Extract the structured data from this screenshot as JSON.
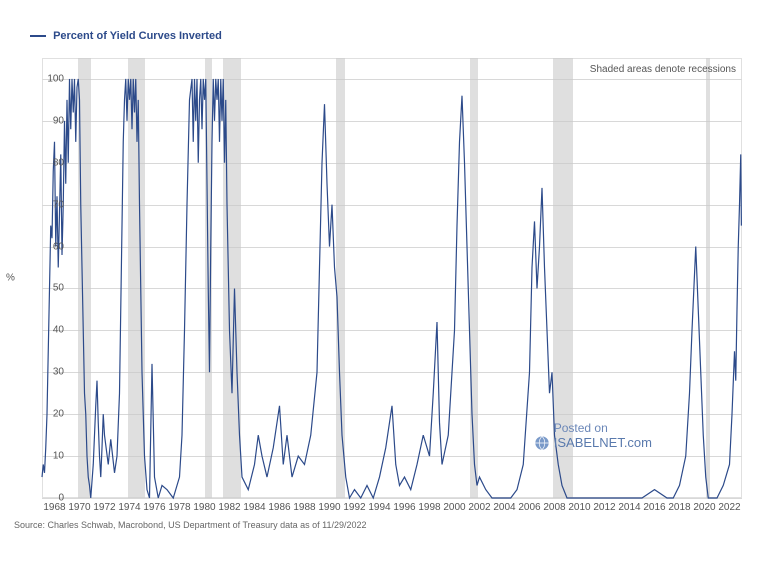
{
  "chart": {
    "type": "line",
    "legend_label": "Percent of Yield Curves Inverted",
    "y_axis_title": "%",
    "source_text": "Source: Charles Schwab, Macrobond, US Department of Treasury data as of 11/29/2022",
    "note_text": "Shaded areas denote recessions",
    "watermark_line1": "Posted on",
    "watermark_line2": "ISABELNET.com",
    "background_color": "#ffffff",
    "grid_color": "#d8d8d8",
    "recession_color": "#c9c9c9",
    "line_color": "#2c4a8a",
    "line_width": 1.2,
    "text_color": "#555555",
    "legend_color": "#2c4a8a",
    "xlim": [
      1967,
      2023
    ],
    "ylim": [
      0,
      105
    ],
    "yticks": [
      0,
      10,
      20,
      30,
      40,
      50,
      60,
      70,
      80,
      90,
      100
    ],
    "xticks": [
      1968,
      1970,
      1972,
      1974,
      1976,
      1978,
      1980,
      1982,
      1984,
      1986,
      1988,
      1990,
      1992,
      1994,
      1996,
      1998,
      2000,
      2002,
      2004,
      2006,
      2008,
      2010,
      2012,
      2014,
      2016,
      2018,
      2020,
      2022
    ],
    "recessions": [
      {
        "start": 1969.9,
        "end": 1970.9
      },
      {
        "start": 1973.9,
        "end": 1975.2
      },
      {
        "start": 1980.0,
        "end": 1980.6
      },
      {
        "start": 1981.5,
        "end": 1982.9
      },
      {
        "start": 1990.5,
        "end": 1991.2
      },
      {
        "start": 2001.2,
        "end": 2001.9
      },
      {
        "start": 2007.9,
        "end": 2009.5
      },
      {
        "start": 2020.1,
        "end": 2020.4
      }
    ],
    "series": [
      {
        "x": 1967.0,
        "y": 5
      },
      {
        "x": 1967.1,
        "y": 8
      },
      {
        "x": 1967.2,
        "y": 6
      },
      {
        "x": 1967.3,
        "y": 12
      },
      {
        "x": 1967.4,
        "y": 20
      },
      {
        "x": 1967.5,
        "y": 35
      },
      {
        "x": 1967.6,
        "y": 50
      },
      {
        "x": 1967.7,
        "y": 65
      },
      {
        "x": 1967.8,
        "y": 62
      },
      {
        "x": 1967.9,
        "y": 78
      },
      {
        "x": 1968.0,
        "y": 85
      },
      {
        "x": 1968.1,
        "y": 60
      },
      {
        "x": 1968.2,
        "y": 72
      },
      {
        "x": 1968.3,
        "y": 55
      },
      {
        "x": 1968.4,
        "y": 68
      },
      {
        "x": 1968.5,
        "y": 82
      },
      {
        "x": 1968.6,
        "y": 58
      },
      {
        "x": 1968.7,
        "y": 70
      },
      {
        "x": 1968.8,
        "y": 90
      },
      {
        "x": 1968.9,
        "y": 75
      },
      {
        "x": 1969.0,
        "y": 95
      },
      {
        "x": 1969.1,
        "y": 80
      },
      {
        "x": 1969.2,
        "y": 100
      },
      {
        "x": 1969.3,
        "y": 88
      },
      {
        "x": 1969.4,
        "y": 100
      },
      {
        "x": 1969.5,
        "y": 92
      },
      {
        "x": 1969.6,
        "y": 100
      },
      {
        "x": 1969.7,
        "y": 85
      },
      {
        "x": 1969.8,
        "y": 98
      },
      {
        "x": 1969.9,
        "y": 100
      },
      {
        "x": 1970.0,
        "y": 95
      },
      {
        "x": 1970.1,
        "y": 70
      },
      {
        "x": 1970.2,
        "y": 55
      },
      {
        "x": 1970.3,
        "y": 40
      },
      {
        "x": 1970.4,
        "y": 25
      },
      {
        "x": 1970.5,
        "y": 20
      },
      {
        "x": 1970.6,
        "y": 10
      },
      {
        "x": 1970.7,
        "y": 5
      },
      {
        "x": 1970.8,
        "y": 3
      },
      {
        "x": 1970.9,
        "y": 0
      },
      {
        "x": 1971.0,
        "y": 4
      },
      {
        "x": 1971.1,
        "y": 8
      },
      {
        "x": 1971.2,
        "y": 15
      },
      {
        "x": 1971.3,
        "y": 22
      },
      {
        "x": 1971.4,
        "y": 28
      },
      {
        "x": 1971.5,
        "y": 18
      },
      {
        "x": 1971.6,
        "y": 10
      },
      {
        "x": 1971.7,
        "y": 5
      },
      {
        "x": 1971.8,
        "y": 12
      },
      {
        "x": 1971.9,
        "y": 20
      },
      {
        "x": 1972.0,
        "y": 15
      },
      {
        "x": 1972.3,
        "y": 8
      },
      {
        "x": 1972.5,
        "y": 14
      },
      {
        "x": 1972.8,
        "y": 6
      },
      {
        "x": 1973.0,
        "y": 10
      },
      {
        "x": 1973.2,
        "y": 25
      },
      {
        "x": 1973.3,
        "y": 45
      },
      {
        "x": 1973.4,
        "y": 65
      },
      {
        "x": 1973.5,
        "y": 85
      },
      {
        "x": 1973.6,
        "y": 95
      },
      {
        "x": 1973.7,
        "y": 100
      },
      {
        "x": 1973.8,
        "y": 90
      },
      {
        "x": 1973.9,
        "y": 100
      },
      {
        "x": 1974.0,
        "y": 95
      },
      {
        "x": 1974.1,
        "y": 100
      },
      {
        "x": 1974.2,
        "y": 88
      },
      {
        "x": 1974.3,
        "y": 100
      },
      {
        "x": 1974.4,
        "y": 92
      },
      {
        "x": 1974.5,
        "y": 100
      },
      {
        "x": 1974.6,
        "y": 85
      },
      {
        "x": 1974.7,
        "y": 95
      },
      {
        "x": 1974.8,
        "y": 70
      },
      {
        "x": 1974.9,
        "y": 50
      },
      {
        "x": 1975.0,
        "y": 30
      },
      {
        "x": 1975.2,
        "y": 10
      },
      {
        "x": 1975.4,
        "y": 2
      },
      {
        "x": 1975.6,
        "y": 0
      },
      {
        "x": 1975.8,
        "y": 32
      },
      {
        "x": 1976.0,
        "y": 5
      },
      {
        "x": 1976.3,
        "y": 0
      },
      {
        "x": 1976.6,
        "y": 3
      },
      {
        "x": 1977.0,
        "y": 2
      },
      {
        "x": 1977.5,
        "y": 0
      },
      {
        "x": 1978.0,
        "y": 5
      },
      {
        "x": 1978.2,
        "y": 15
      },
      {
        "x": 1978.4,
        "y": 40
      },
      {
        "x": 1978.6,
        "y": 70
      },
      {
        "x": 1978.8,
        "y": 95
      },
      {
        "x": 1979.0,
        "y": 100
      },
      {
        "x": 1979.1,
        "y": 85
      },
      {
        "x": 1979.2,
        "y": 100
      },
      {
        "x": 1979.3,
        "y": 90
      },
      {
        "x": 1979.4,
        "y": 100
      },
      {
        "x": 1979.5,
        "y": 80
      },
      {
        "x": 1979.6,
        "y": 95
      },
      {
        "x": 1979.7,
        "y": 100
      },
      {
        "x": 1979.8,
        "y": 88
      },
      {
        "x": 1979.9,
        "y": 100
      },
      {
        "x": 1980.0,
        "y": 95
      },
      {
        "x": 1980.1,
        "y": 100
      },
      {
        "x": 1980.2,
        "y": 75
      },
      {
        "x": 1980.3,
        "y": 50
      },
      {
        "x": 1980.4,
        "y": 30
      },
      {
        "x": 1980.5,
        "y": 60
      },
      {
        "x": 1980.6,
        "y": 85
      },
      {
        "x": 1980.7,
        "y": 100
      },
      {
        "x": 1980.8,
        "y": 90
      },
      {
        "x": 1980.9,
        "y": 100
      },
      {
        "x": 1981.0,
        "y": 95
      },
      {
        "x": 1981.1,
        "y": 100
      },
      {
        "x": 1981.2,
        "y": 85
      },
      {
        "x": 1981.3,
        "y": 100
      },
      {
        "x": 1981.4,
        "y": 90
      },
      {
        "x": 1981.5,
        "y": 100
      },
      {
        "x": 1981.6,
        "y": 80
      },
      {
        "x": 1981.7,
        "y": 95
      },
      {
        "x": 1981.8,
        "y": 70
      },
      {
        "x": 1981.9,
        "y": 55
      },
      {
        "x": 1982.0,
        "y": 40
      },
      {
        "x": 1982.2,
        "y": 25
      },
      {
        "x": 1982.4,
        "y": 50
      },
      {
        "x": 1982.6,
        "y": 30
      },
      {
        "x": 1982.8,
        "y": 15
      },
      {
        "x": 1983.0,
        "y": 5
      },
      {
        "x": 1983.5,
        "y": 2
      },
      {
        "x": 1984.0,
        "y": 8
      },
      {
        "x": 1984.3,
        "y": 15
      },
      {
        "x": 1984.6,
        "y": 10
      },
      {
        "x": 1985.0,
        "y": 5
      },
      {
        "x": 1985.5,
        "y": 12
      },
      {
        "x": 1986.0,
        "y": 22
      },
      {
        "x": 1986.3,
        "y": 8
      },
      {
        "x": 1986.6,
        "y": 15
      },
      {
        "x": 1987.0,
        "y": 5
      },
      {
        "x": 1987.5,
        "y": 10
      },
      {
        "x": 1988.0,
        "y": 8
      },
      {
        "x": 1988.5,
        "y": 15
      },
      {
        "x": 1989.0,
        "y": 30
      },
      {
        "x": 1989.2,
        "y": 55
      },
      {
        "x": 1989.4,
        "y": 80
      },
      {
        "x": 1989.6,
        "y": 94
      },
      {
        "x": 1989.8,
        "y": 75
      },
      {
        "x": 1990.0,
        "y": 60
      },
      {
        "x": 1990.2,
        "y": 70
      },
      {
        "x": 1990.4,
        "y": 55
      },
      {
        "x": 1990.6,
        "y": 48
      },
      {
        "x": 1990.8,
        "y": 30
      },
      {
        "x": 1991.0,
        "y": 15
      },
      {
        "x": 1991.3,
        "y": 5
      },
      {
        "x": 1991.6,
        "y": 0
      },
      {
        "x": 1992.0,
        "y": 2
      },
      {
        "x": 1992.5,
        "y": 0
      },
      {
        "x": 1993.0,
        "y": 3
      },
      {
        "x": 1993.5,
        "y": 0
      },
      {
        "x": 1994.0,
        "y": 5
      },
      {
        "x": 1994.5,
        "y": 12
      },
      {
        "x": 1995.0,
        "y": 22
      },
      {
        "x": 1995.3,
        "y": 8
      },
      {
        "x": 1995.6,
        "y": 3
      },
      {
        "x": 1996.0,
        "y": 5
      },
      {
        "x": 1996.5,
        "y": 2
      },
      {
        "x": 1997.0,
        "y": 8
      },
      {
        "x": 1997.5,
        "y": 15
      },
      {
        "x": 1998.0,
        "y": 10
      },
      {
        "x": 1998.3,
        "y": 25
      },
      {
        "x": 1998.6,
        "y": 42
      },
      {
        "x": 1998.8,
        "y": 18
      },
      {
        "x": 1999.0,
        "y": 8
      },
      {
        "x": 1999.5,
        "y": 15
      },
      {
        "x": 2000.0,
        "y": 40
      },
      {
        "x": 2000.2,
        "y": 65
      },
      {
        "x": 2000.4,
        "y": 85
      },
      {
        "x": 2000.6,
        "y": 96
      },
      {
        "x": 2000.8,
        "y": 80
      },
      {
        "x": 2001.0,
        "y": 60
      },
      {
        "x": 2001.2,
        "y": 40
      },
      {
        "x": 2001.4,
        "y": 20
      },
      {
        "x": 2001.6,
        "y": 8
      },
      {
        "x": 2001.8,
        "y": 3
      },
      {
        "x": 2002.0,
        "y": 5
      },
      {
        "x": 2002.5,
        "y": 2
      },
      {
        "x": 2003.0,
        "y": 0
      },
      {
        "x": 2003.5,
        "y": 0
      },
      {
        "x": 2004.0,
        "y": 0
      },
      {
        "x": 2004.5,
        "y": 0
      },
      {
        "x": 2005.0,
        "y": 2
      },
      {
        "x": 2005.5,
        "y": 8
      },
      {
        "x": 2006.0,
        "y": 30
      },
      {
        "x": 2006.2,
        "y": 55
      },
      {
        "x": 2006.4,
        "y": 66
      },
      {
        "x": 2006.6,
        "y": 50
      },
      {
        "x": 2006.8,
        "y": 60
      },
      {
        "x": 2007.0,
        "y": 74
      },
      {
        "x": 2007.2,
        "y": 55
      },
      {
        "x": 2007.4,
        "y": 40
      },
      {
        "x": 2007.6,
        "y": 25
      },
      {
        "x": 2007.8,
        "y": 30
      },
      {
        "x": 2008.0,
        "y": 15
      },
      {
        "x": 2008.3,
        "y": 8
      },
      {
        "x": 2008.6,
        "y": 3
      },
      {
        "x": 2009.0,
        "y": 0
      },
      {
        "x": 2009.5,
        "y": 0
      },
      {
        "x": 2010.0,
        "y": 0
      },
      {
        "x": 2011.0,
        "y": 0
      },
      {
        "x": 2012.0,
        "y": 0
      },
      {
        "x": 2013.0,
        "y": 0
      },
      {
        "x": 2014.0,
        "y": 0
      },
      {
        "x": 2015.0,
        "y": 0
      },
      {
        "x": 2016.0,
        "y": 2
      },
      {
        "x": 2017.0,
        "y": 0
      },
      {
        "x": 2017.5,
        "y": 0
      },
      {
        "x": 2018.0,
        "y": 3
      },
      {
        "x": 2018.5,
        "y": 10
      },
      {
        "x": 2018.8,
        "y": 25
      },
      {
        "x": 2019.0,
        "y": 40
      },
      {
        "x": 2019.3,
        "y": 60
      },
      {
        "x": 2019.5,
        "y": 45
      },
      {
        "x": 2019.7,
        "y": 30
      },
      {
        "x": 2019.9,
        "y": 15
      },
      {
        "x": 2020.1,
        "y": 5
      },
      {
        "x": 2020.3,
        "y": 0
      },
      {
        "x": 2020.6,
        "y": 0
      },
      {
        "x": 2021.0,
        "y": 0
      },
      {
        "x": 2021.5,
        "y": 3
      },
      {
        "x": 2022.0,
        "y": 8
      },
      {
        "x": 2022.2,
        "y": 20
      },
      {
        "x": 2022.4,
        "y": 35
      },
      {
        "x": 2022.5,
        "y": 28
      },
      {
        "x": 2022.6,
        "y": 45
      },
      {
        "x": 2022.7,
        "y": 60
      },
      {
        "x": 2022.8,
        "y": 70
      },
      {
        "x": 2022.9,
        "y": 82
      },
      {
        "x": 2022.95,
        "y": 65
      }
    ]
  }
}
